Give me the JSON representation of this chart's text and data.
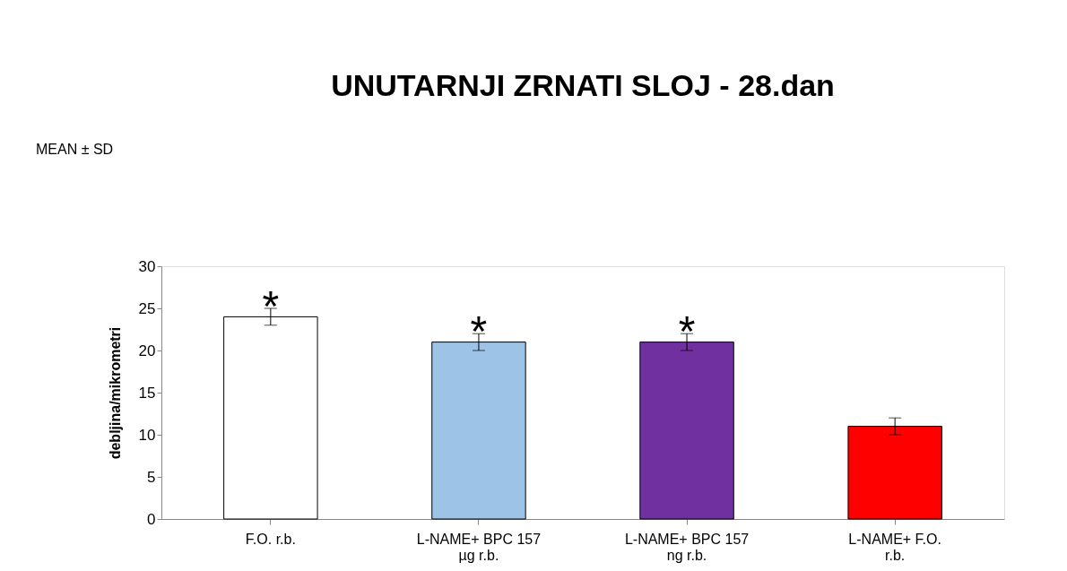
{
  "chart_data": {
    "type": "bar",
    "title": "UNUTARNJI ZRNATI SLOJ - 28.dan",
    "ylabel": "debljina/mikrometri",
    "categories": [
      "F.O. r.b.",
      "L-NAME+ BPC 157 µg r.b.",
      "L-NAME+ BPC 157 ng r.b.",
      "L-NAME+ F.O. r.b."
    ],
    "values": [
      24,
      21,
      21,
      11
    ],
    "colors": [
      "#ffffff",
      "#9dc3e6",
      "#7030a0",
      "#ff0000"
    ],
    "errors": [
      1,
      1,
      1,
      1
    ],
    "ylim": [
      0,
      30
    ],
    "yticks": [
      0,
      5,
      10,
      15,
      20,
      25,
      30
    ],
    "grid": false,
    "legend": false,
    "annotations": [
      "MEAN ± SD",
      "*",
      "*",
      "*"
    ]
  }
}
